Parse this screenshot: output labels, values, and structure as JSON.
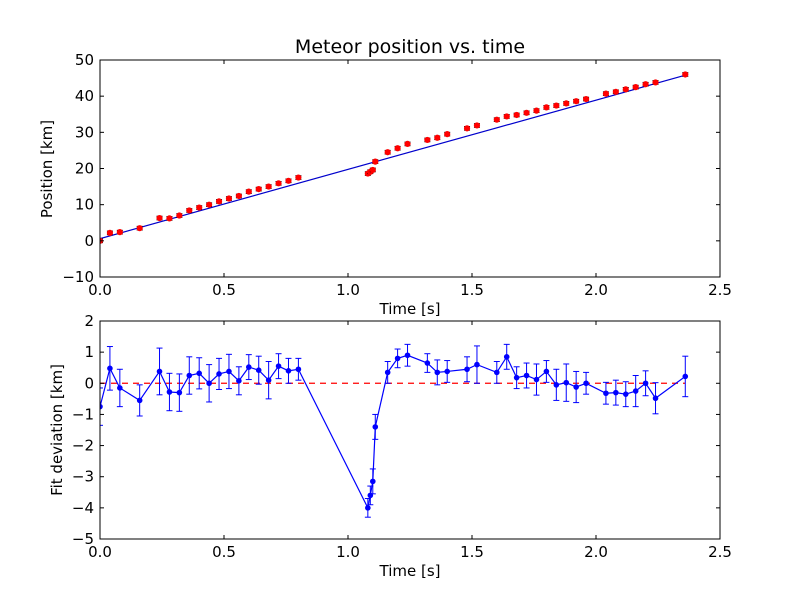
{
  "chart_data": [
    {
      "type": "scatter",
      "title": "Meteor position vs. time",
      "xlabel": "Time [s]",
      "ylabel": "Position [km]",
      "xlim": [
        0.0,
        2.5
      ],
      "ylim": [
        -10,
        50
      ],
      "xticks": [
        "0.0",
        "0.5",
        "1.0",
        "1.5",
        "2.0",
        "2.5"
      ],
      "xtick_values": [
        0,
        0.5,
        1.0,
        1.5,
        2.0,
        2.5
      ],
      "yticks": [
        "−10",
        "0",
        "10",
        "20",
        "30",
        "40",
        "50"
      ],
      "ytick_values": [
        -10,
        0,
        10,
        20,
        30,
        40,
        50
      ],
      "grid": false,
      "colors": {
        "points": "#ff0000",
        "fit_line": "#0000cc"
      },
      "series": [
        {
          "kind": "points-with-errorbars",
          "x": [
            0.0,
            0.04,
            0.08,
            0.16,
            0.24,
            0.28,
            0.32,
            0.36,
            0.4,
            0.44,
            0.48,
            0.52,
            0.56,
            0.6,
            0.64,
            0.68,
            0.72,
            0.76,
            0.8,
            1.08,
            1.09,
            1.1,
            1.11,
            1.16,
            1.2,
            1.24,
            1.32,
            1.36,
            1.4,
            1.48,
            1.52,
            1.6,
            1.64,
            1.68,
            1.72,
            1.76,
            1.8,
            1.84,
            1.88,
            1.92,
            1.96,
            2.04,
            2.08,
            2.12,
            2.16,
            2.2,
            2.24,
            2.36
          ],
          "y": [
            0.0,
            2.2,
            2.4,
            3.5,
            6.3,
            6.2,
            7.0,
            8.4,
            9.2,
            10.0,
            10.9,
            11.7,
            12.4,
            13.6,
            14.3,
            15.0,
            15.9,
            16.6,
            17.5,
            18.6,
            19.1,
            19.6,
            21.9,
            24.5,
            25.6,
            26.8,
            27.9,
            28.5,
            29.5,
            31.1,
            31.9,
            33.5,
            34.4,
            34.8,
            35.4,
            36.0,
            36.9,
            37.4,
            38.0,
            38.6,
            39.2,
            40.7,
            41.2,
            41.9,
            42.5,
            43.3,
            43.8,
            46.0
          ],
          "yerr": 0.5
        },
        {
          "kind": "fit-line",
          "x": [
            0.0,
            2.36
          ],
          "y": [
            0.6,
            45.8
          ]
        }
      ]
    },
    {
      "type": "line",
      "title": "",
      "xlabel": "Time [s]",
      "ylabel": "Fit deviation [km]",
      "xlim": [
        0.0,
        2.5
      ],
      "ylim": [
        -5,
        2
      ],
      "xticks": [
        "0.0",
        "0.5",
        "1.0",
        "1.5",
        "2.0",
        "2.5"
      ],
      "xtick_values": [
        0,
        0.5,
        1.0,
        1.5,
        2.0,
        2.5
      ],
      "yticks": [
        "−5",
        "−4",
        "−3",
        "−2",
        "−1",
        "0",
        "1",
        "2"
      ],
      "ytick_values": [
        -5,
        -4,
        -3,
        -2,
        -1,
        0,
        1,
        2
      ],
      "grid": false,
      "colors": {
        "deviation": "#0000ff",
        "zero_line": "#ff0000"
      },
      "series": [
        {
          "kind": "line-with-errorbars",
          "x": [
            0.0,
            0.04,
            0.08,
            0.16,
            0.24,
            0.28,
            0.32,
            0.36,
            0.4,
            0.44,
            0.48,
            0.52,
            0.56,
            0.6,
            0.64,
            0.68,
            0.72,
            0.76,
            0.8,
            1.08,
            1.09,
            1.1,
            1.11,
            1.16,
            1.2,
            1.24,
            1.32,
            1.36,
            1.4,
            1.48,
            1.52,
            1.6,
            1.64,
            1.68,
            1.72,
            1.76,
            1.8,
            1.84,
            1.88,
            1.92,
            1.96,
            2.04,
            2.08,
            2.12,
            2.16,
            2.2,
            2.24,
            2.36
          ],
          "y": [
            -0.75,
            0.48,
            -0.15,
            -0.55,
            0.38,
            -0.28,
            -0.3,
            0.25,
            0.32,
            0.0,
            0.3,
            0.38,
            0.08,
            0.52,
            0.42,
            0.1,
            0.55,
            0.4,
            0.45,
            -4.0,
            -3.6,
            -3.15,
            -1.4,
            0.35,
            0.8,
            0.9,
            0.65,
            0.35,
            0.38,
            0.45,
            0.6,
            0.35,
            0.85,
            0.18,
            0.25,
            0.12,
            0.38,
            -0.05,
            0.02,
            -0.12,
            0.0,
            -0.32,
            -0.3,
            -0.35,
            -0.25,
            0.0,
            -0.48,
            0.22
          ],
          "yerr": [
            0.6,
            0.7,
            0.6,
            0.5,
            0.75,
            0.6,
            0.6,
            0.6,
            0.5,
            0.6,
            0.5,
            0.55,
            0.45,
            0.4,
            0.45,
            0.6,
            0.4,
            0.4,
            0.35,
            0.3,
            0.3,
            0.4,
            0.4,
            0.35,
            0.3,
            0.35,
            0.3,
            0.4,
            0.35,
            0.4,
            0.6,
            0.35,
            0.4,
            0.35,
            0.4,
            0.5,
            0.35,
            0.5,
            0.6,
            0.5,
            0.35,
            0.35,
            0.4,
            0.4,
            0.5,
            0.4,
            0.5,
            0.65
          ]
        },
        {
          "kind": "reference-line",
          "x": [
            0.0,
            2.36
          ],
          "y": [
            0,
            0
          ]
        }
      ]
    }
  ]
}
